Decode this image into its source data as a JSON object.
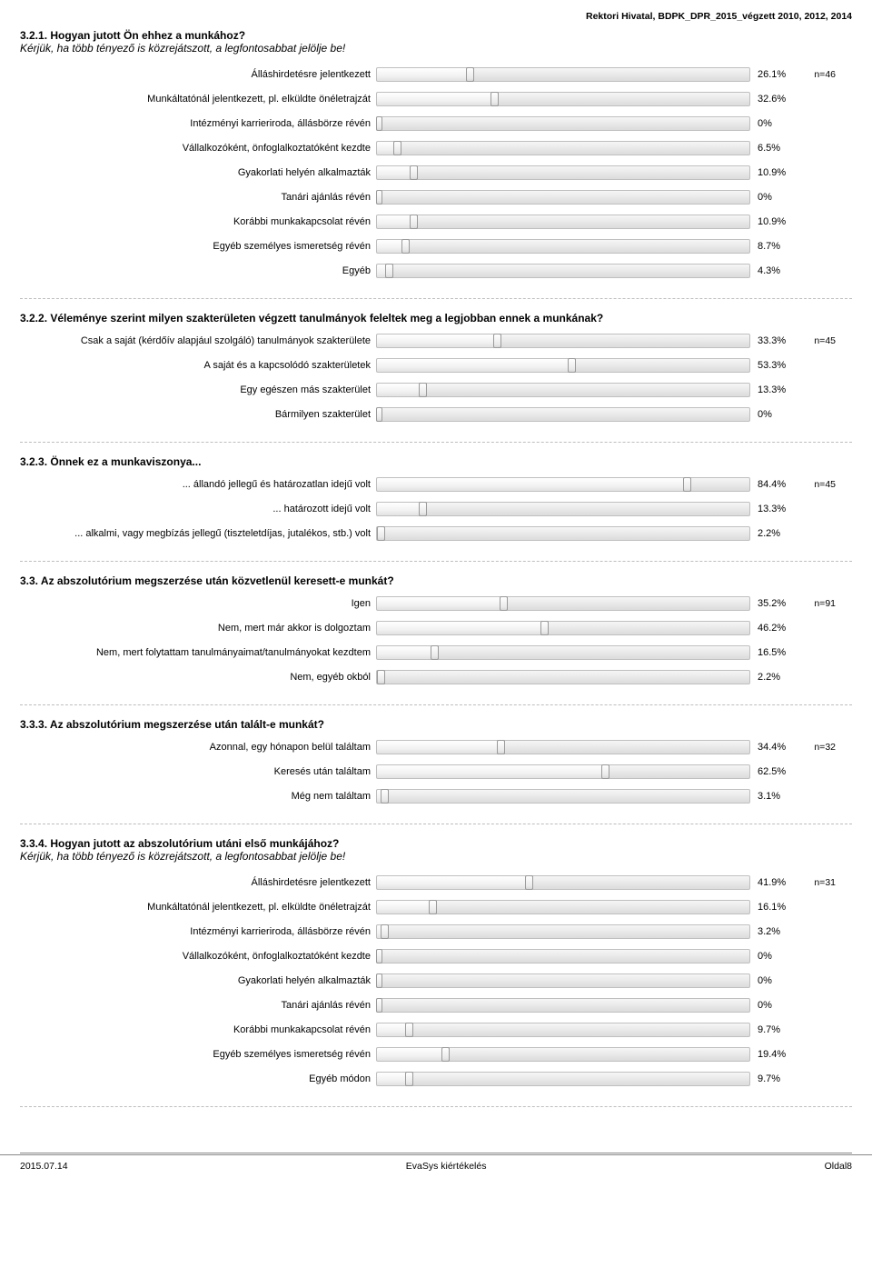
{
  "header": "Rektori Hivatal, BDPK_DPR_2015_végzett 2010, 2012, 2014",
  "footer": {
    "left": "2015.07.14",
    "center": "EvaSys kiértékelés",
    "right": "Oldal8"
  },
  "sections": [
    {
      "title": "3.2.1. Hogyan jutott Ön ehhez a munkához?",
      "subtitle": "Kérjük, ha több tényező is közrejátszott, a legfontosabbat jelölje be!",
      "n": "n=46",
      "rows": [
        {
          "label": "Álláshirdetésre jelentkezett",
          "pct": 26.1
        },
        {
          "label": "Munkáltatónál jelentkezett, pl. elküldte önéletrajzát",
          "pct": 32.6
        },
        {
          "label": "Intézményi karrieriroda, állásbörze révén",
          "pct": 0
        },
        {
          "label": "Vállalkozóként, önfoglalkoztatóként kezdte",
          "pct": 6.5
        },
        {
          "label": "Gyakorlati helyén alkalmazták",
          "pct": 10.9
        },
        {
          "label": "Tanári ajánlás révén",
          "pct": 0
        },
        {
          "label": "Korábbi munkakapcsolat révén",
          "pct": 10.9
        },
        {
          "label": "Egyéb személyes ismeretség révén",
          "pct": 8.7
        },
        {
          "label": "Egyéb",
          "pct": 4.3
        }
      ]
    },
    {
      "title": "3.2.2. Véleménye szerint milyen szakterületen végzett tanulmányok feleltek meg a legjobban ennek a munkának?",
      "subtitle": "",
      "n": "n=45",
      "rows": [
        {
          "label": "Csak a saját (kérdőív alapjául szolgáló) tanulmányok szakterülete",
          "pct": 33.3
        },
        {
          "label": "A saját és a kapcsolódó szakterületek",
          "pct": 53.3
        },
        {
          "label": "Egy egészen más szakterület",
          "pct": 13.3
        },
        {
          "label": "Bármilyen szakterület",
          "pct": 0
        }
      ]
    },
    {
      "title": "3.2.3. Önnek ez a munkaviszonya...",
      "subtitle": "",
      "n": "n=45",
      "rows": [
        {
          "label": "... állandó jellegű és határozatlan idejű volt",
          "pct": 84.4
        },
        {
          "label": "... határozott idejű volt",
          "pct": 13.3
        },
        {
          "label": "... alkalmi, vagy megbízás jellegű (tiszteletdíjas, jutalékos, stb.) volt",
          "pct": 2.2
        }
      ]
    },
    {
      "title": "3.3. Az abszolutórium megszerzése után közvetlenül keresett-e munkát?",
      "subtitle": "",
      "n": "n=91",
      "rows": [
        {
          "label": "Igen",
          "pct": 35.2
        },
        {
          "label": "Nem, mert már akkor is dolgoztam",
          "pct": 46.2
        },
        {
          "label": "Nem, mert folytattam tanulmányaimat/tanulmányokat kezdtem",
          "pct": 16.5
        },
        {
          "label": "Nem, egyéb okból",
          "pct": 2.2
        }
      ]
    },
    {
      "title": "3.3.3. Az abszolutórium megszerzése után talált-e munkát?",
      "subtitle": "",
      "n": "n=32",
      "rows": [
        {
          "label": "Azonnal, egy hónapon belül találtam",
          "pct": 34.4
        },
        {
          "label": "Keresés után találtam",
          "pct": 62.5
        },
        {
          "label": "Még nem találtam",
          "pct": 3.1
        }
      ]
    },
    {
      "title": "3.3.4. Hogyan jutott az abszolutórium utáni első munkájához?",
      "subtitle": "Kérjük, ha több tényező is közrejátszott, a legfontosabbat jelölje be!",
      "n": "n=31",
      "rows": [
        {
          "label": "Álláshirdetésre jelentkezett",
          "pct": 41.9
        },
        {
          "label": "Munkáltatónál jelentkezett, pl. elküldte önéletrajzát",
          "pct": 16.1
        },
        {
          "label": "Intézményi karrieriroda, állásbörze révén",
          "pct": 3.2
        },
        {
          "label": "Vállalkozóként, önfoglalkoztatóként kezdte",
          "pct": 0
        },
        {
          "label": "Gyakorlati helyén alkalmazták",
          "pct": 0
        },
        {
          "label": "Tanári ajánlás révén",
          "pct": 0
        },
        {
          "label": "Korábbi munkakapcsolat révén",
          "pct": 9.7
        },
        {
          "label": "Egyéb személyes ismeretség révén",
          "pct": 19.4
        },
        {
          "label": "Egyéb módon",
          "pct": 9.7
        }
      ]
    }
  ]
}
